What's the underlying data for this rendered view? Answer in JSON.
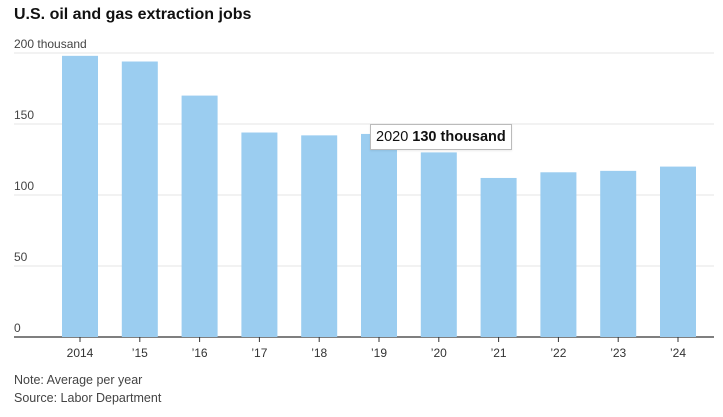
{
  "chart_data": {
    "type": "bar",
    "title": "U.S. oil and gas extraction jobs",
    "categories": [
      "2014",
      "’15",
      "’16",
      "’17",
      "’18",
      "’19",
      "’20",
      "’21",
      "’22",
      "’23",
      "’24"
    ],
    "values": [
      198,
      194,
      170,
      144,
      142,
      143,
      130,
      112,
      116,
      117,
      120
    ],
    "ylim": [
      0,
      200
    ],
    "yticks": [
      {
        "value": 0,
        "label": "0"
      },
      {
        "value": 50,
        "label": "50"
      },
      {
        "value": 100,
        "label": "100"
      },
      {
        "value": 150,
        "label": "150"
      },
      {
        "value": 200,
        "label": "200 thousand"
      }
    ],
    "grid": true,
    "bar_color": "#9bcdf0",
    "annotation": {
      "category_index": 6,
      "year": "2020",
      "value_label": "130 thousand"
    },
    "note": "Note: Average per year",
    "source": "Source: Labor Department"
  }
}
